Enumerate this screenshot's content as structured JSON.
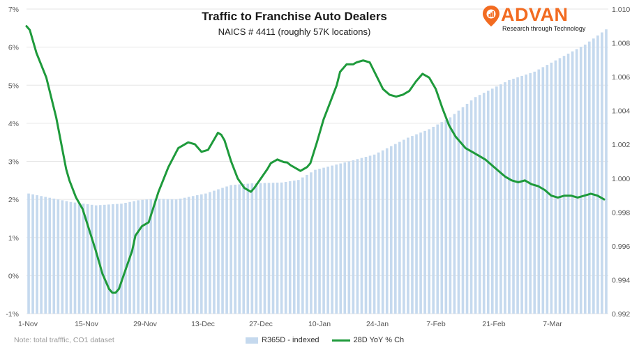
{
  "colors": {
    "bars": "#c5d9ee",
    "line": "#1e9a3b",
    "brand": "#f26b21",
    "grid": "#e6e6e6"
  },
  "header": {
    "title": "Traffic to Franchise Auto Dealers",
    "subtitle": "NAICS # 4411 (roughly 57K locations)"
  },
  "logo": {
    "name": "ADVAN",
    "tagline": "Research through Technology",
    "icon": "location-pin-icon"
  },
  "note": "Note: total trafffic, CO1 dataset",
  "chart_data": {
    "type": "bar+line",
    "title": "Traffic to Franchise Auto Dealers",
    "x_tick_labels": [
      "1-Nov",
      "15-Nov",
      "29-Nov",
      "13-Dec",
      "27-Dec",
      "10-Jan",
      "24-Jan",
      "7-Feb",
      "21-Feb",
      "7-Mar"
    ],
    "y_left": {
      "ticks": [
        "-1%",
        "0%",
        "1%",
        "2%",
        "3%",
        "4%",
        "5%",
        "6%",
        "7%"
      ],
      "range": [
        -1,
        7
      ]
    },
    "y_right": {
      "ticks": [
        "0.992",
        "0.994",
        "0.996",
        "0.998",
        "1.000",
        "1.002",
        "1.004",
        "1.006",
        "1.008",
        "1.010"
      ],
      "range": [
        0.992,
        1.01
      ]
    },
    "grid": true,
    "legend_position": "bottom",
    "series": [
      {
        "name": "R365D - indexed",
        "type": "bar",
        "axis": "right",
        "day_count": 138,
        "knots": [
          [
            0,
            0.9991
          ],
          [
            6,
            0.9988
          ],
          [
            10,
            0.9986
          ],
          [
            16,
            0.9984
          ],
          [
            22,
            0.9985
          ],
          [
            26,
            0.9987
          ],
          [
            30,
            0.9988
          ],
          [
            35,
            0.99875
          ],
          [
            42,
            0.9991
          ],
          [
            48,
            0.9996
          ],
          [
            53,
            0.9997
          ],
          [
            60,
            0.99975
          ],
          [
            64,
            0.9999
          ],
          [
            68,
            1.0005
          ],
          [
            76,
            1.001
          ],
          [
            82,
            1.0014
          ],
          [
            90,
            1.0024
          ],
          [
            95,
            1.0029
          ],
          [
            100,
            1.0036
          ],
          [
            106,
            1.0048
          ],
          [
            114,
            1.0058
          ],
          [
            120,
            1.0063
          ],
          [
            126,
            1.0071
          ],
          [
            132,
            1.0079
          ],
          [
            137,
            1.0088
          ]
        ]
      },
      {
        "name": "28D YoY % Ch",
        "type": "line",
        "axis": "left",
        "knots": [
          [
            0,
            6.55
          ],
          [
            1,
            6.45
          ],
          [
            3,
            5.85
          ],
          [
            6,
            5.2
          ],
          [
            9,
            4.15
          ],
          [
            12,
            2.8
          ],
          [
            13,
            2.5
          ],
          [
            15,
            2.05
          ],
          [
            17,
            1.75
          ],
          [
            19,
            1.2
          ],
          [
            21,
            0.65
          ],
          [
            23,
            0.05
          ],
          [
            25,
            -0.35
          ],
          [
            26,
            -0.45
          ],
          [
            27,
            -0.45
          ],
          [
            28,
            -0.35
          ],
          [
            30,
            0.15
          ],
          [
            32,
            0.65
          ],
          [
            33,
            1.05
          ],
          [
            35,
            1.3
          ],
          [
            37,
            1.4
          ],
          [
            40,
            2.2
          ],
          [
            43,
            2.85
          ],
          [
            46,
            3.35
          ],
          [
            48,
            3.45
          ],
          [
            49,
            3.5
          ],
          [
            51,
            3.45
          ],
          [
            53,
            3.25
          ],
          [
            55,
            3.3
          ],
          [
            57,
            3.6
          ],
          [
            58,
            3.75
          ],
          [
            59,
            3.7
          ],
          [
            60,
            3.55
          ],
          [
            62,
            3.0
          ],
          [
            64,
            2.55
          ],
          [
            66,
            2.3
          ],
          [
            68,
            2.2
          ],
          [
            69,
            2.3
          ],
          [
            71,
            2.55
          ],
          [
            73,
            2.8
          ],
          [
            74,
            2.95
          ],
          [
            76,
            3.05
          ],
          [
            78,
            2.98
          ],
          [
            79,
            2.97
          ],
          [
            80,
            2.9
          ],
          [
            82,
            2.8
          ],
          [
            83,
            2.75
          ],
          [
            85,
            2.85
          ],
          [
            86,
            2.95
          ],
          [
            88,
            3.5
          ],
          [
            90,
            4.1
          ],
          [
            92,
            4.55
          ],
          [
            94,
            5.0
          ],
          [
            95,
            5.35
          ],
          [
            97,
            5.55
          ],
          [
            99,
            5.55
          ],
          [
            100,
            5.6
          ],
          [
            102,
            5.65
          ],
          [
            104,
            5.6
          ],
          [
            106,
            5.25
          ],
          [
            108,
            4.9
          ],
          [
            110,
            4.75
          ],
          [
            112,
            4.7
          ],
          [
            114,
            4.75
          ],
          [
            116,
            4.85
          ],
          [
            118,
            5.1
          ],
          [
            120,
            5.3
          ],
          [
            122,
            5.2
          ],
          [
            124,
            4.9
          ],
          [
            126,
            4.4
          ],
          [
            128,
            3.95
          ],
          [
            130,
            3.65
          ],
          [
            132,
            3.45
          ],
          [
            133,
            3.35
          ],
          [
            135,
            3.25
          ],
          [
            137,
            3.15
          ],
          [
            139,
            3.05
          ],
          [
            141,
            2.9
          ],
          [
            143,
            2.75
          ],
          [
            145,
            2.6
          ],
          [
            147,
            2.5
          ],
          [
            149,
            2.45
          ],
          [
            151,
            2.5
          ],
          [
            153,
            2.4
          ],
          [
            155,
            2.35
          ],
          [
            157,
            2.25
          ],
          [
            159,
            2.1
          ],
          [
            161,
            2.05
          ],
          [
            163,
            2.1
          ],
          [
            165,
            2.1
          ],
          [
            167,
            2.05
          ],
          [
            169,
            2.1
          ],
          [
            171,
            2.15
          ],
          [
            173,
            2.1
          ],
          [
            175,
            2.0
          ]
        ]
      }
    ]
  }
}
